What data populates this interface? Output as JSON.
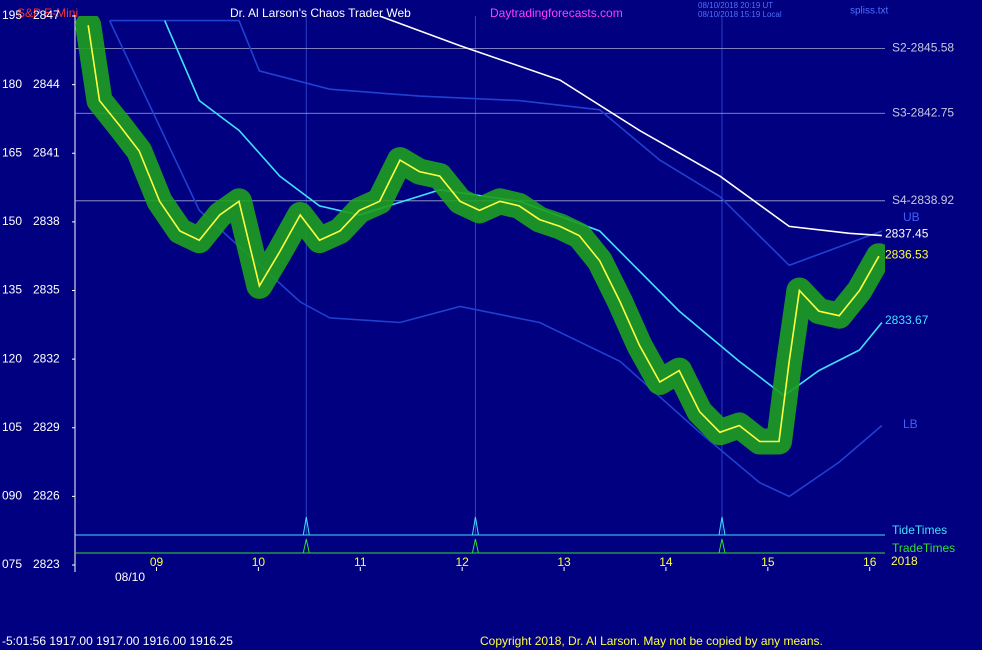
{
  "chart_data": {
    "type": "line",
    "title": "S&P E-Mini",
    "subtitle": "Dr. Al Larson's Chaos Trader Web",
    "site": "Daytradingforecasts.com",
    "stamps": [
      "08/10/2018 20:19 UT",
      "08/10/2018 15:19 Local",
      "spliss.txt"
    ],
    "date_label": "08/10",
    "year_label": "2018",
    "band_labels": [
      "UB",
      "LB"
    ],
    "footer_quote": "-5:01:56  1917.00 1917.00 1916.00 1916.25",
    "copyright": "Copyright 2018, Dr. Al Larson. May not be copied by any means.",
    "xlim": [
      8.2,
      16.15
    ],
    "xticks": [
      {
        "value": 9,
        "label": "09"
      },
      10,
      11,
      12,
      13,
      14,
      15,
      16
    ],
    "ylim": [
      2823,
      2847
    ],
    "yticks": [
      2823,
      2826,
      2829,
      2832,
      2835,
      2838,
      2841,
      2844,
      2847
    ],
    "y2lim": [
      75,
      195
    ],
    "y2ticks": [
      {
        "value": 75,
        "label": "075"
      },
      {
        "value": 90,
        "label": "090"
      },
      105,
      120,
      135,
      150,
      165,
      180,
      195
    ],
    "levels": [
      {
        "value": 2845.58,
        "label": "S2-2845.58"
      },
      {
        "value": 2842.75,
        "label": "S3-2842.75"
      },
      {
        "value": 2838.92,
        "label": "S4-2838.92"
      }
    ],
    "series": [
      {
        "color": "#2040d0",
        "x": [
          8.54,
          9.81,
          10.01,
          10.7,
          11.58,
          12.56,
          13.35,
          13.94,
          14.53,
          15.21,
          16.12
        ],
        "values": [
          2846.8,
          2846.8,
          2844.6,
          2843.8,
          2843.5,
          2843.3,
          2842.9,
          2840.7,
          2839.1,
          2836.1,
          2837.6
        ]
      },
      {
        "color": "#2040d0",
        "x": [
          8.54,
          9.42,
          10.41,
          10.7,
          11.39,
          11.98,
          12.76,
          13.55,
          14.33,
          14.92,
          15.21,
          15.7,
          16.12
        ],
        "values": [
          2846.8,
          2838.5,
          2834.5,
          2833.8,
          2833.6,
          2834.3,
          2833.6,
          2831.9,
          2828.8,
          2826.6,
          2826.0,
          2827.5,
          2829.1
        ]
      },
      {
        "color": "#ffffff",
        "x": [
          11.19,
          11.98,
          12.96,
          13.74,
          14.53,
          15.21,
          15.8,
          16.12
        ],
        "values": [
          2847.0,
          2845.7,
          2844.2,
          2842.0,
          2840.0,
          2837.8,
          2837.5,
          2837.4
        ]
      },
      {
        "color": "#40e0ff",
        "x": [
          9.08,
          9.42,
          9.81,
          10.21,
          10.6,
          10.99,
          11.78,
          12.56,
          13.35,
          14.13,
          14.72,
          15.16,
          15.5,
          15.9,
          16.12
        ],
        "values": [
          2846.8,
          2843.3,
          2842.0,
          2840.0,
          2838.7,
          2838.3,
          2839.4,
          2838.9,
          2837.6,
          2834.1,
          2831.9,
          2830.4,
          2831.5,
          2832.4,
          2833.6
        ]
      },
      {
        "color": "#ffff40",
        "halo": "#1ea01e",
        "x": [
          8.33,
          8.44,
          8.64,
          8.83,
          9.03,
          9.23,
          9.42,
          9.62,
          9.81,
          10.01,
          10.21,
          10.41,
          10.6,
          10.8,
          10.99,
          11.19,
          11.39,
          11.58,
          11.78,
          11.98,
          12.17,
          12.37,
          12.56,
          12.76,
          12.96,
          13.15,
          13.35,
          13.55,
          13.74,
          13.94,
          14.13,
          14.33,
          14.53,
          14.72,
          14.92,
          15.11,
          15.21,
          15.31,
          15.5,
          15.7,
          15.9,
          16.09
        ],
        "values": [
          2846.6,
          2843.3,
          2842.2,
          2841.1,
          2838.9,
          2837.6,
          2837.2,
          2838.3,
          2838.9,
          2835.2,
          2836.7,
          2838.3,
          2837.2,
          2837.6,
          2838.5,
          2838.9,
          2840.7,
          2840.2,
          2840.0,
          2838.9,
          2838.5,
          2838.9,
          2838.7,
          2838.1,
          2837.8,
          2837.4,
          2836.3,
          2834.5,
          2832.6,
          2831.0,
          2831.5,
          2829.7,
          2828.8,
          2829.1,
          2828.4,
          2828.4,
          2831.9,
          2835.0,
          2834.1,
          2833.9,
          2835.0,
          2836.5
        ]
      }
    ],
    "price_labels": [
      {
        "value": 2837.45,
        "color": "#ffffff"
      },
      {
        "value": 2836.53,
        "color": "#ffff40"
      },
      {
        "value": 2833.67,
        "color": "#40e0ff"
      }
    ],
    "timing": [
      {
        "name": "TideTimes",
        "color": "#40e0ff",
        "x": [
          10.47,
          12.13,
          14.55
        ]
      },
      {
        "name": "TradeTimes",
        "color": "#30e030",
        "x": [
          10.47,
          12.13,
          14.55
        ]
      }
    ]
  }
}
